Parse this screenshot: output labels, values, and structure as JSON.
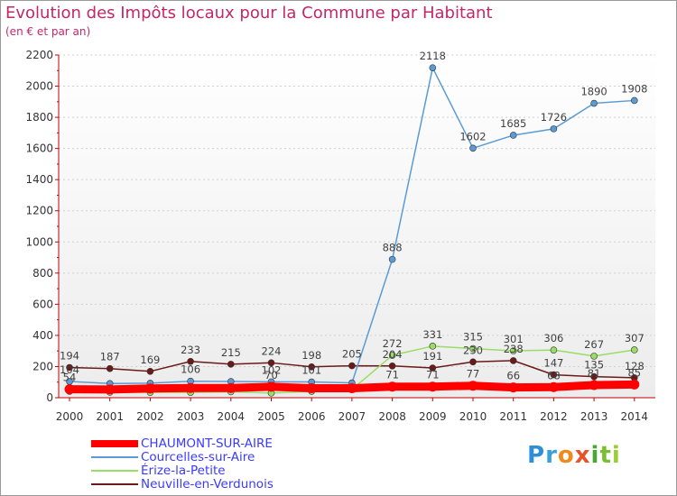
{
  "chart_data": {
    "type": "line",
    "title": "Evolution des Impôts locaux pour la Commune par Habitant",
    "subtitle": "(en € et par an)",
    "xlabel": "",
    "ylabel": "",
    "ylim": [
      0,
      2200
    ],
    "yticks": [
      0,
      200,
      400,
      600,
      800,
      1000,
      1200,
      1400,
      1600,
      1800,
      2000,
      2200
    ],
    "x": [
      "2000",
      "2001",
      "2002",
      "2003",
      "2004",
      "2005",
      "2006",
      "2007",
      "2008",
      "2009",
      "2010",
      "2011",
      "2012",
      "2013",
      "2014"
    ],
    "series": [
      {
        "name": "CHAUMONT-SUR-AIRE",
        "color": "#ff0000",
        "values": [
          54,
          53,
          59,
          62,
          62,
          70,
          61,
          61,
          71,
          71,
          77,
          66,
          68,
          81,
          85
        ],
        "labels": [
          "54",
          "",
          "",
          "",
          "",
          "70",
          "",
          "",
          "71",
          "71",
          "77",
          "66",
          "68",
          "81",
          "85"
        ]
      },
      {
        "name": "Courcelles-sur-Aire",
        "color": "#5b9bd5",
        "values": [
          104,
          91,
          93,
          106,
          104,
          102,
          101,
          95,
          888,
          2118,
          1602,
          1685,
          1726,
          1890,
          1908
        ],
        "labels": [
          "104",
          "",
          "",
          "106",
          "",
          "102",
          "101",
          "",
          "888",
          "2118",
          "1602",
          "1685",
          "1726",
          "1890",
          "1908"
        ]
      },
      {
        "name": "Érize-la-Petite",
        "color": "#99dd66",
        "values": [
          41,
          35,
          34,
          34,
          38,
          30,
          41,
          53,
          272,
          331,
          315,
          301,
          306,
          267,
          307
        ],
        "labels": [
          "",
          "",
          "",
          "",
          "",
          "",
          "",
          "",
          "272",
          "331",
          "315",
          "301",
          "306",
          "267",
          "307"
        ]
      },
      {
        "name": "Neuville-en-Verdunois",
        "color": "#6b1a1a",
        "values": [
          194,
          187,
          169,
          233,
          215,
          224,
          198,
          205,
          204,
          191,
          230,
          238,
          147,
          135,
          128
        ],
        "labels": [
          "194",
          "187",
          "169",
          "233",
          "215",
          "224",
          "198",
          "205",
          "204",
          "191",
          "230",
          "238",
          "147",
          "135",
          "128"
        ]
      }
    ]
  },
  "logo": {
    "letters": [
      "P",
      "r",
      "o",
      "x",
      "i",
      "t",
      "i"
    ],
    "colors": [
      "#2e8fd6",
      "#3aa0d9",
      "#f08a1c",
      "#e8532b",
      "#4aa832",
      "#7cbf2e",
      "#9acd32"
    ]
  }
}
